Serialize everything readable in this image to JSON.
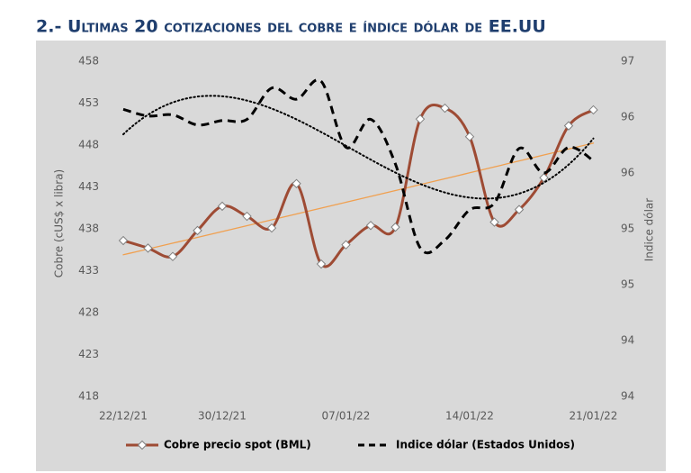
{
  "chart_data": {
    "type": "line",
    "title": "2.- Ultimas 20 cotizaciones del cobre e índice dólar de EE.UU",
    "y_label": "Cobre (cUS$ x libra)",
    "y2_label": "Indice dólar",
    "categories": [
      "22/12/21",
      null,
      null,
      null,
      "30/12/21",
      null,
      null,
      null,
      null,
      "07/01/22",
      null,
      null,
      null,
      null,
      "14/01/22",
      null,
      null,
      null,
      null,
      "21/01/22"
    ],
    "ylim": [
      418,
      458
    ],
    "yticks": [
      418,
      423,
      428,
      433,
      438,
      443,
      448,
      453,
      458
    ],
    "y2lim": [
      93.75,
      96.75
    ],
    "y2ticks": [
      {
        "value": 93.75,
        "label": "94"
      },
      {
        "value": 94.25,
        "label": "94"
      },
      {
        "value": 94.75,
        "label": "95"
      },
      {
        "value": 95.25,
        "label": "95"
      },
      {
        "value": 95.75,
        "label": "96"
      },
      {
        "value": 96.25,
        "label": "96"
      },
      {
        "value": 96.75,
        "label": "97"
      }
    ],
    "grid": false,
    "legend": "bottom",
    "series": [
      {
        "name": "Cobre precio spot (BML)",
        "color": "#9e4b34",
        "axis": "y",
        "marker": "diamond",
        "trendline": "exponential",
        "trendline_color": "#f0a050",
        "values": [
          436.6,
          435.7,
          434.7,
          437.8,
          440.7,
          439.5,
          438.1,
          443.4,
          433.8,
          436.1,
          438.4,
          438.2,
          451.1,
          452.4,
          449.0,
          438.8,
          440.3,
          444.1,
          450.3,
          452.2
        ]
      },
      {
        "name": "Indice dólar (Estados Unidos)",
        "color": "#000000",
        "axis": "y2",
        "dash": true,
        "trendline": "polynomial",
        "trendline_order": 3,
        "trendline_color": "#000000",
        "values": [
          96.32,
          96.26,
          96.27,
          96.18,
          96.22,
          96.23,
          96.51,
          96.41,
          96.57,
          95.98,
          96.23,
          95.83,
          95.08,
          95.15,
          95.42,
          95.48,
          95.97,
          95.75,
          95.98,
          95.86
        ]
      }
    ]
  }
}
